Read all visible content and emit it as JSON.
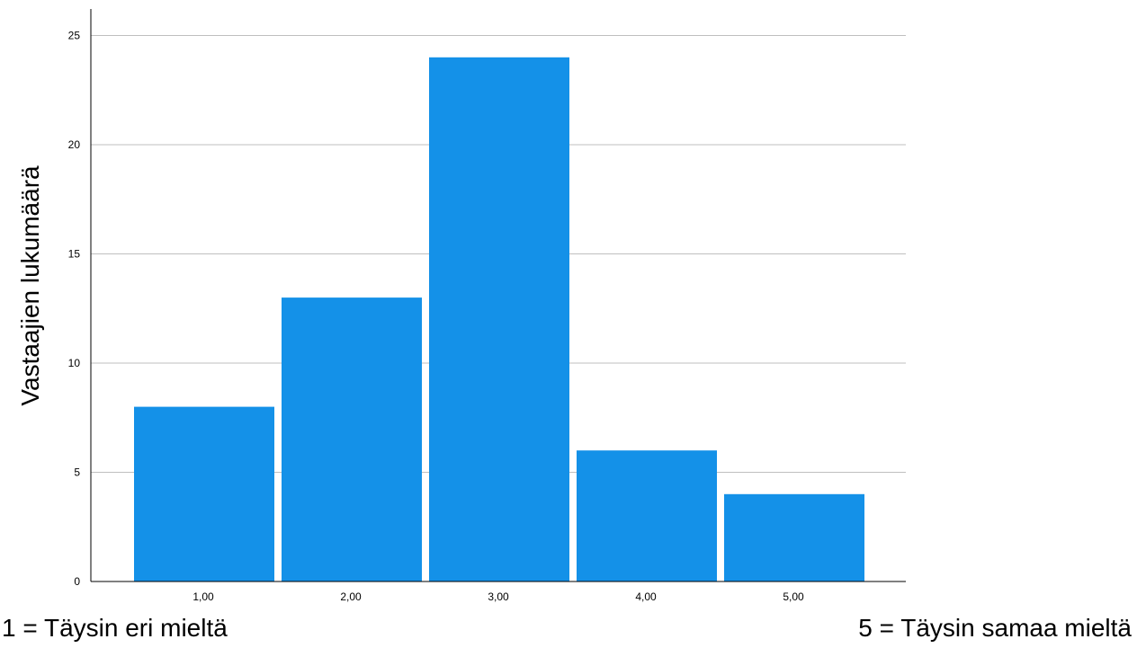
{
  "chart_data": {
    "type": "bar",
    "title": "",
    "xlabel": "",
    "ylabel": "Vastaajien lukumäärä",
    "categories": [
      "1,00",
      "2,00",
      "3,00",
      "4,00",
      "5,00"
    ],
    "values": [
      8,
      13,
      24,
      6,
      4
    ],
    "ylim": [
      0,
      26
    ],
    "yticks": [
      "0",
      "5",
      "10",
      "15",
      "20",
      "25"
    ],
    "ytick_values": [
      0,
      5,
      10,
      15,
      20,
      25
    ],
    "grid": true,
    "legend": "none",
    "bar_color": "#1491e8",
    "grid_color": "#bfbfbf"
  },
  "notes": {
    "left": "1 = Täysin eri mieltä",
    "right": "5 = Täysin samaa mieltä"
  }
}
